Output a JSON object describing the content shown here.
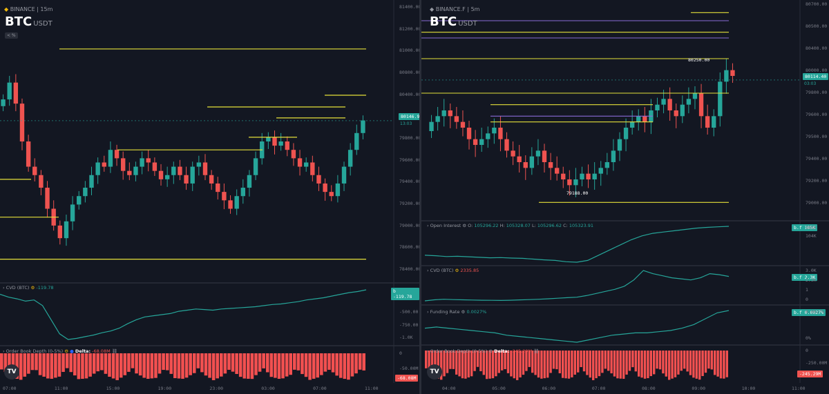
{
  "left": {
    "exchange": "BINANCE",
    "interval": "15m",
    "base": "BTC",
    "quote": "USDT",
    "badge": "< %",
    "price_axis": [
      "81400.00",
      "81200.00",
      "81000.00",
      "80800.00",
      "80400.00",
      "80000.00",
      "79800.00",
      "79600.00",
      "79400.00",
      "79200.00",
      "79000.00",
      "78600.00",
      "78400.00"
    ],
    "last_price": "80146.94",
    "countdown": "13:03",
    "cvd_label": "CVD (BTC)",
    "cvd_value": "-119.78",
    "cvd_tag": "-119.78",
    "cvd_axis": [
      "-500.00",
      "-750.00",
      "-1.0K"
    ],
    "obd_label": "Order Book Depth (0-5%)",
    "obd_delta_label": "Delta:",
    "obd_delta_value": "-68.08M",
    "obd_axis": [
      "0",
      "-50.00M"
    ],
    "obd_tag": "-68.08M",
    "time_axis": [
      "07:00",
      "11:00",
      "15:00",
      "19:00",
      "23:00",
      "03:00",
      "07:00",
      "11:00"
    ]
  },
  "right": {
    "exchange": "BINANCE.F",
    "interval": "5m",
    "base": "BTC",
    "quote": "USDT",
    "price_axis": [
      "80700.00",
      "80500.00",
      "80400.00",
      "80000.00",
      "79800.00",
      "79600.00",
      "79500.00",
      "79400.00",
      "79200.00",
      "79000.00"
    ],
    "last_price": "80114.40",
    "countdown": "03:03",
    "high_annot": "80250.00",
    "low_annot": "79188.00",
    "oi_label": "Open Interest",
    "oi_o": "105296.22",
    "oi_h": "105328.07",
    "oi_l": "105296.62",
    "oi_c": "105323.91",
    "oi_axis": [
      "105K",
      "104K"
    ],
    "oi_tag": "105K",
    "cvd_label": "CVD (BTC)",
    "cvd_value": "2335.85",
    "cvd_axis": [
      "3.0K",
      "2.3K",
      "1",
      "0"
    ],
    "cvd_tag": "2.3K",
    "fr_label": "Funding Rate",
    "fr_value": "0.0027%",
    "fr_axis": [
      "0.0027%",
      "0%"
    ],
    "fr_tag": "0.0027%",
    "obd_label": "Order Book Depth (0-5%)",
    "obd_delta_label": "Delta:",
    "obd_delta_value": "-245.29M",
    "obd_axis": [
      "0",
      "-250.00M"
    ],
    "obd_tag": "-245.29M",
    "time_axis": [
      "04:00",
      "05:00",
      "06:00",
      "07:00",
      "08:00",
      "09:00",
      "10:00",
      "11:00"
    ]
  },
  "chart_data": [
    {
      "type": "candlestick",
      "exchange": "BINANCE",
      "interval": "15m",
      "ylim": [
        78300,
        81500
      ],
      "last_price": 80146.94,
      "candles_close": [
        80400,
        80600,
        80350,
        79900,
        79600,
        79500,
        79350,
        79100,
        78900,
        78750,
        78950,
        79150,
        79250,
        79350,
        79500,
        79650,
        79600,
        79800,
        79700,
        79550,
        79500,
        79600,
        79700,
        79650,
        79550,
        79450,
        79500,
        79600,
        79500,
        79400,
        79600,
        79650,
        79500,
        79400,
        79300,
        79200,
        79100,
        79250,
        79350,
        79500,
        79700,
        79900,
        79950,
        79850,
        79900,
        79800,
        79700,
        79600,
        79650,
        79500,
        79400,
        79300,
        79250,
        79400,
        79600,
        79800,
        80000,
        80150
      ]
    },
    {
      "type": "candlestick",
      "exchange": "BINANCE.F",
      "interval": "5m",
      "ylim": [
        78950,
        80750
      ],
      "last_price": 80114.4,
      "high": 80250.0,
      "low": 79188.0,
      "candles_close": [
        79750,
        79800,
        79850,
        79800,
        79750,
        79700,
        79600,
        79550,
        79600,
        79650,
        79700,
        79600,
        79500,
        79450,
        79400,
        79350,
        79450,
        79500,
        79400,
        79350,
        79300,
        79250,
        79200,
        79250,
        79300,
        79250,
        79300,
        79350,
        79400,
        79500,
        79600,
        79700,
        79750,
        79800,
        79750,
        79850,
        79900,
        79950,
        79850,
        79800,
        79900,
        79950,
        80000,
        79800,
        79700,
        79800,
        80100,
        80200,
        80150
      ]
    },
    {
      "type": "line",
      "name": "Open Interest",
      "values": [
        104200,
        104180,
        104150,
        104160,
        104140,
        104120,
        104100,
        104110,
        104090,
        104080,
        104050,
        104020,
        104000,
        103950,
        103930,
        104000,
        104200,
        104400,
        104600,
        104800,
        104950,
        105050,
        105100,
        105150,
        105200,
        105250,
        105280,
        105300,
        105320
      ]
    },
    {
      "type": "line",
      "name": "CVD (BTC)",
      "values": [
        0,
        100,
        150,
        120,
        100,
        80,
        60,
        50,
        40,
        60,
        90,
        120,
        150,
        200,
        250,
        300,
        350,
        500,
        700,
        900,
        1100,
        1400,
        2000,
        2900,
        2600,
        2400,
        2200,
        2100,
        2000,
        2200,
        2600,
        2500,
        2335
      ]
    },
    {
      "type": "line",
      "name": "Funding Rate",
      "values": [
        0.0012,
        0.0013,
        0.0012,
        0.0011,
        0.001,
        0.0009,
        0.0008,
        0.0006,
        0.0005,
        0.0004,
        0.0003,
        0.0002,
        0.0001,
        0.0,
        0.0002,
        0.0004,
        0.0006,
        0.0007,
        0.0008,
        0.0008,
        0.0009,
        0.001,
        0.0012,
        0.0015,
        0.002,
        0.0025,
        0.0027
      ]
    }
  ]
}
